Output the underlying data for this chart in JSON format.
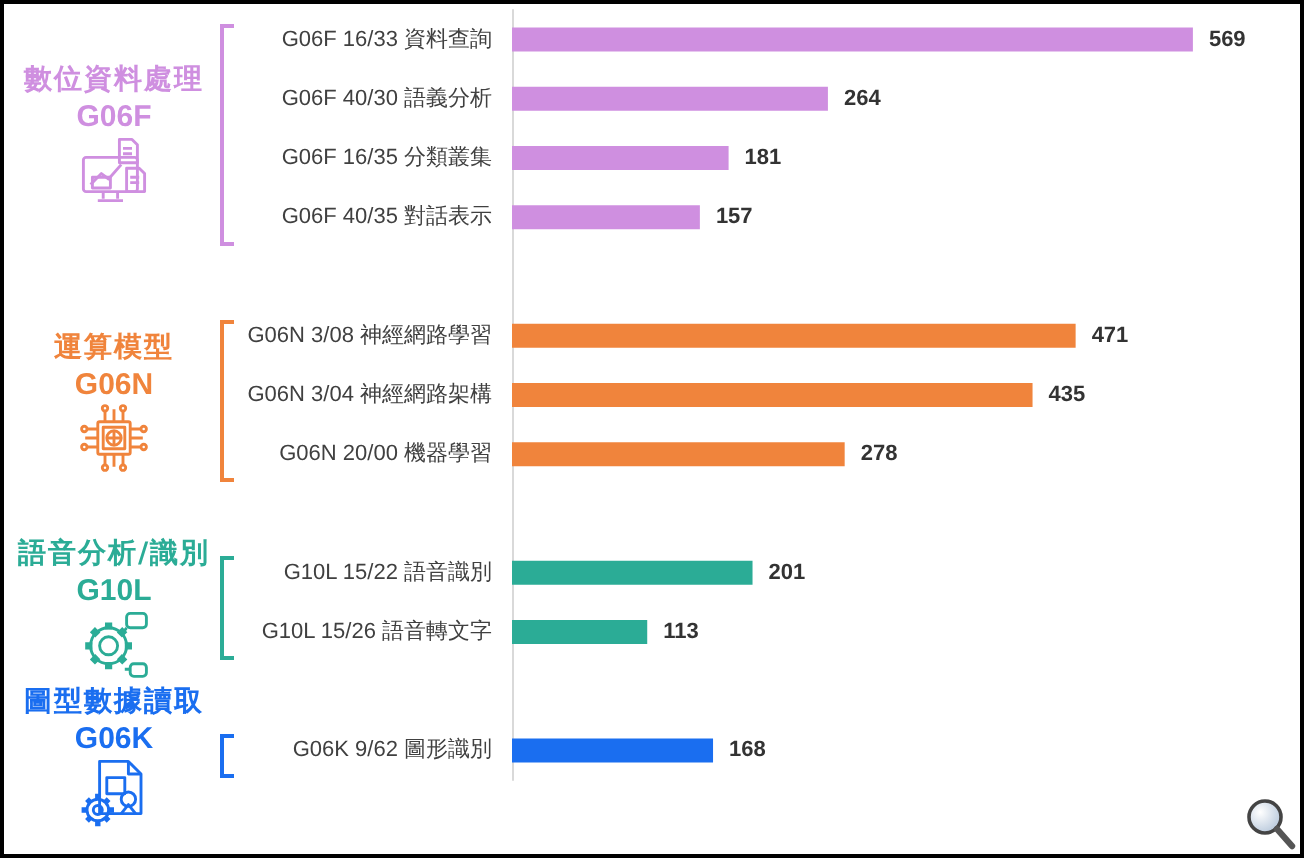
{
  "chart_data": {
    "type": "bar",
    "orientation": "horizontal",
    "categories": [
      "G06F 16/33 資料查詢",
      "G06F 40/30 語義分析",
      "G06F 16/35 分類叢集",
      "G06F 40/35 對話表示",
      null,
      "G06N 3/08 神經網路學習",
      "G06N 3/04 神經網路架構",
      "G06N 20/00 機器學習",
      null,
      "G10L 15/22 語音識別",
      "G10L 15/26 語音轉文字",
      null,
      "G06K 9/62 圖形識別"
    ],
    "series": [
      {
        "name": "數位資料處理 G06F",
        "color": "#cf8fe0",
        "values": [
          569,
          264,
          181,
          157,
          null,
          null,
          null,
          null,
          null,
          null,
          null,
          null,
          null
        ]
      },
      {
        "name": "運算模型 G06N",
        "color": "#f0843c",
        "values": [
          null,
          null,
          null,
          null,
          null,
          471,
          435,
          278,
          null,
          null,
          null,
          null,
          null
        ]
      },
      {
        "name": "語音分析/識別 G10L",
        "color": "#2bac96",
        "values": [
          null,
          null,
          null,
          null,
          null,
          null,
          null,
          null,
          null,
          201,
          113,
          null,
          null
        ]
      },
      {
        "name": "圖型數據讀取 G06K",
        "color": "#1a6ef0",
        "values": [
          null,
          null,
          null,
          null,
          null,
          null,
          null,
          null,
          null,
          null,
          null,
          null,
          168
        ]
      }
    ],
    "data_labels": true,
    "legend": "left"
  }
}
